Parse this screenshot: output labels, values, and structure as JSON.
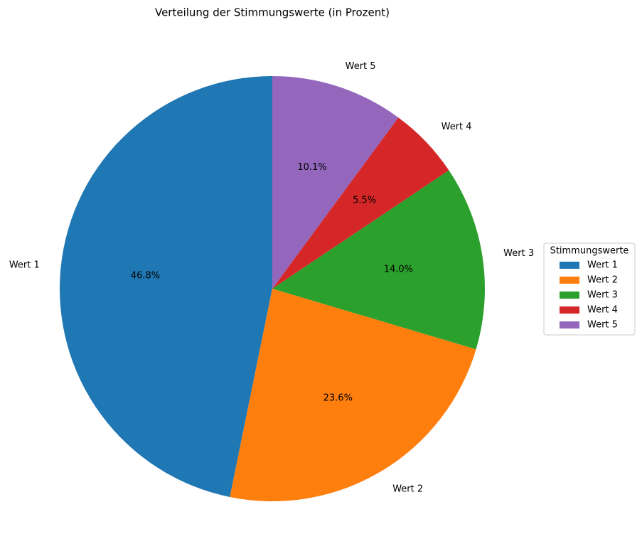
{
  "chart_data": {
    "type": "pie",
    "title": "Verteilung der Stimmungswerte (in Prozent)",
    "categories": [
      "Wert 1",
      "Wert 2",
      "Wert 3",
      "Wert 4",
      "Wert 5"
    ],
    "values": [
      46.8,
      23.6,
      14.0,
      5.5,
      10.1
    ],
    "value_labels": [
      "46.8%",
      "23.6%",
      "14.0%",
      "5.5%",
      "10.1%"
    ],
    "colors": [
      "#1f77b4",
      "#ff7f0e",
      "#2ca02c",
      "#d62728",
      "#9467bd"
    ],
    "legend_title": "Stimmungswerte",
    "legend": "right"
  }
}
